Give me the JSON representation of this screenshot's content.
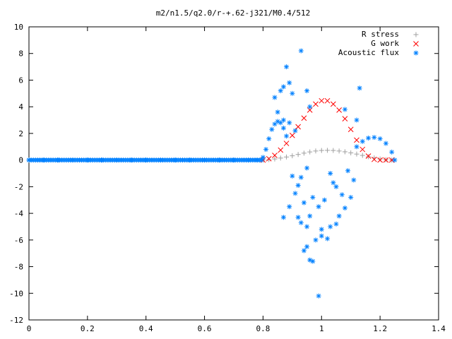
{
  "chart_data": {
    "type": "scatter",
    "title": "m2/n1.5/q2.0/r-+.62-j321/M0.4/512",
    "xlabel": "",
    "ylabel": "",
    "xlim": [
      0,
      1.4
    ],
    "ylim": [
      -12,
      10
    ],
    "x_ticks": [
      "0",
      "0.2",
      "0.4",
      "0.6",
      "0.8",
      "1",
      "1.2",
      "1.4"
    ],
    "y_ticks": [
      "10",
      "8",
      "6",
      "4",
      "2",
      "0",
      "-2",
      "-4",
      "-6",
      "-8",
      "-10",
      "-12"
    ],
    "legend_position": "top-right",
    "grid": false,
    "series": [
      {
        "name": "R stress",
        "marker": "+",
        "color": "#a0a0a0",
        "points": [
          [
            0.8,
            0.0
          ],
          [
            0.82,
            0.03
          ],
          [
            0.84,
            0.08
          ],
          [
            0.86,
            0.15
          ],
          [
            0.88,
            0.23
          ],
          [
            0.9,
            0.32
          ],
          [
            0.92,
            0.42
          ],
          [
            0.94,
            0.52
          ],
          [
            0.96,
            0.61
          ],
          [
            0.98,
            0.68
          ],
          [
            1.0,
            0.72
          ],
          [
            1.02,
            0.73
          ],
          [
            1.04,
            0.72
          ],
          [
            1.06,
            0.68
          ],
          [
            1.08,
            0.62
          ],
          [
            1.1,
            0.54
          ],
          [
            1.12,
            0.45
          ],
          [
            1.14,
            0.35
          ],
          [
            1.16,
            0.25
          ],
          [
            1.18,
            0.16
          ],
          [
            1.2,
            0.08
          ],
          [
            1.22,
            0.03
          ],
          [
            1.24,
            0.0
          ]
        ]
      },
      {
        "name": "G work",
        "marker": "x",
        "color": "#ff0000",
        "points": [
          [
            0.8,
            0.0
          ],
          [
            0.82,
            0.1
          ],
          [
            0.84,
            0.35
          ],
          [
            0.86,
            0.75
          ],
          [
            0.88,
            1.25
          ],
          [
            0.9,
            1.85
          ],
          [
            0.92,
            2.5
          ],
          [
            0.94,
            3.15
          ],
          [
            0.96,
            3.75
          ],
          [
            0.98,
            4.2
          ],
          [
            1.0,
            4.45
          ],
          [
            1.02,
            4.45
          ],
          [
            1.04,
            4.2
          ],
          [
            1.06,
            3.75
          ],
          [
            1.08,
            3.1
          ],
          [
            1.1,
            2.3
          ],
          [
            1.12,
            1.5
          ],
          [
            1.14,
            0.8
          ],
          [
            1.16,
            0.3
          ],
          [
            1.18,
            0.05
          ],
          [
            1.2,
            0.0
          ],
          [
            1.22,
            0.0
          ],
          [
            1.24,
            0.0
          ]
        ]
      },
      {
        "name": "Acoustic flux",
        "marker": "*",
        "color": "#0080ff",
        "points": [
          [
            0.0,
            0.0
          ],
          [
            0.05,
            0.0
          ],
          [
            0.1,
            0.0
          ],
          [
            0.15,
            0.0
          ],
          [
            0.2,
            0.0
          ],
          [
            0.25,
            0.0
          ],
          [
            0.3,
            0.0
          ],
          [
            0.35,
            0.0
          ],
          [
            0.4,
            0.0
          ],
          [
            0.45,
            0.0
          ],
          [
            0.5,
            0.0
          ],
          [
            0.55,
            0.0
          ],
          [
            0.6,
            0.0
          ],
          [
            0.65,
            0.0
          ],
          [
            0.7,
            0.0
          ],
          [
            0.75,
            0.0
          ],
          [
            0.78,
            0.0
          ],
          [
            0.8,
            0.2
          ],
          [
            0.81,
            0.8
          ],
          [
            0.82,
            1.6
          ],
          [
            0.83,
            2.3
          ],
          [
            0.84,
            2.7
          ],
          [
            0.85,
            2.9
          ],
          [
            0.86,
            2.8
          ],
          [
            0.87,
            2.4
          ],
          [
            0.88,
            1.8
          ],
          [
            1.12,
            1.0
          ],
          [
            1.14,
            1.4
          ],
          [
            1.16,
            1.65
          ],
          [
            1.18,
            1.7
          ],
          [
            1.2,
            1.6
          ],
          [
            1.22,
            1.25
          ],
          [
            1.24,
            0.6
          ],
          [
            1.25,
            0.0
          ],
          [
            0.93,
            8.2
          ],
          [
            0.88,
            7.0
          ],
          [
            0.86,
            5.2
          ],
          [
            0.87,
            5.5
          ],
          [
            0.89,
            5.8
          ],
          [
            0.84,
            4.7
          ],
          [
            0.9,
            5.0
          ],
          [
            0.85,
            3.6
          ],
          [
            0.87,
            3.0
          ],
          [
            0.89,
            2.8
          ],
          [
            0.91,
            2.2
          ],
          [
            0.95,
            5.2
          ],
          [
            0.96,
            4.0
          ],
          [
            1.13,
            5.4
          ],
          [
            1.08,
            3.8
          ],
          [
            1.12,
            3.0
          ],
          [
            0.99,
            -10.2
          ],
          [
            0.97,
            -7.6
          ],
          [
            0.96,
            -7.5
          ],
          [
            0.95,
            -6.5
          ],
          [
            0.94,
            -6.8
          ],
          [
            0.98,
            -6.0
          ],
          [
            1.0,
            -5.7
          ],
          [
            1.02,
            -5.9
          ],
          [
            1.0,
            -5.2
          ],
          [
            0.95,
            -5.0
          ],
          [
            0.92,
            -4.3
          ],
          [
            0.96,
            -4.2
          ],
          [
            1.03,
            -5.0
          ],
          [
            1.05,
            -4.8
          ],
          [
            1.06,
            -4.2
          ],
          [
            1.08,
            -3.6
          ],
          [
            1.07,
            -2.6
          ],
          [
            1.1,
            -2.8
          ],
          [
            1.05,
            -2.0
          ],
          [
            0.99,
            -3.5
          ],
          [
            1.01,
            -3.0
          ],
          [
            0.97,
            -2.8
          ],
          [
            0.94,
            -3.2
          ],
          [
            0.91,
            -2.5
          ],
          [
            0.9,
            -1.2
          ],
          [
            0.93,
            -1.3
          ],
          [
            0.95,
            -0.6
          ],
          [
            1.03,
            -1.0
          ],
          [
            1.09,
            -0.8
          ],
          [
            1.11,
            -1.5
          ],
          [
            1.04,
            -1.7
          ],
          [
            0.92,
            -1.9
          ],
          [
            0.89,
            -3.5
          ],
          [
            0.87,
            -4.3
          ],
          [
            0.93,
            -4.7
          ]
        ]
      }
    ]
  }
}
